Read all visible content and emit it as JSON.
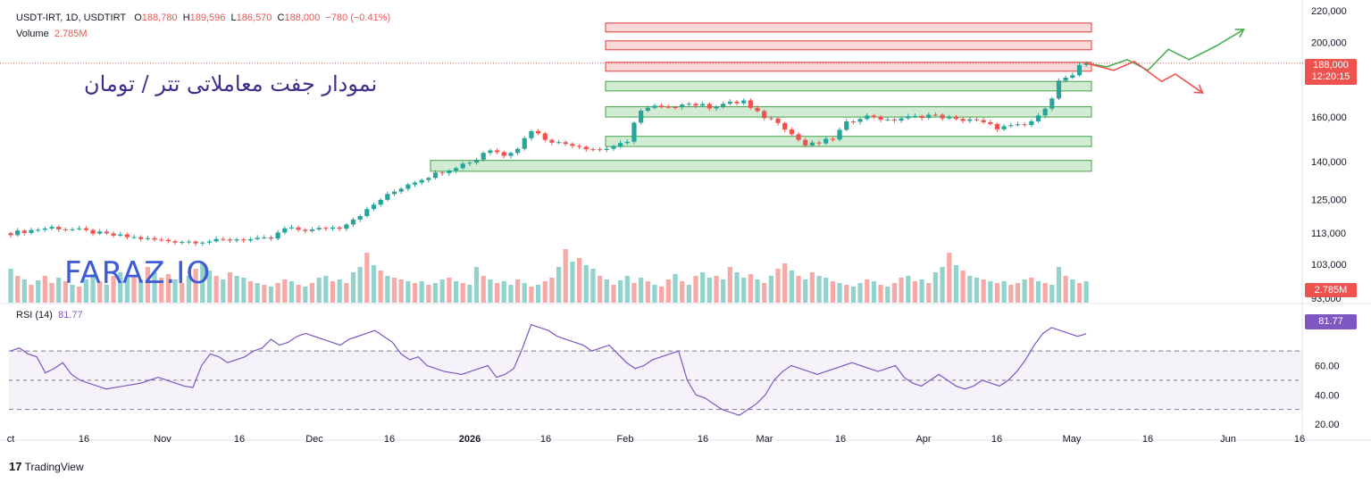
{
  "header": {
    "symbol": "USDT-IRT, 1D, USDTIRT",
    "open_label": "O",
    "open": "188,780",
    "high_label": "H",
    "high": "189,596",
    "low_label": "L",
    "low": "186,570",
    "close_label": "C",
    "close": "188,000",
    "change": "−780 (−0.41%)",
    "volume_label": "Volume",
    "volume": "2.785M"
  },
  "title_fa": "نمودار جفت معاملاتی تتر / تومان",
  "watermark": "FARAZ.IO",
  "rsi": {
    "label": "RSI (14)",
    "value": "81.77"
  },
  "badges": {
    "price": "188,000",
    "countdown": "12:20:15",
    "volume": "2.785M",
    "rsi": "81.77"
  },
  "footer": {
    "brand_icon": "17",
    "brand_text": "TradingView"
  },
  "colors": {
    "up": "#26a69a",
    "down": "#ef5350",
    "rsi_line": "#7e57c2",
    "accent": "#3f5bd6"
  },
  "chart_data": {
    "type": "candlestick",
    "price_axis": {
      "ticks": [
        93000,
        103000,
        113000,
        125000,
        140000,
        160000,
        188000,
        200000,
        220000
      ],
      "tick_labels": [
        "93,000",
        "103,000",
        "113,000",
        "125,000",
        "140,000",
        "160,000",
        "188,000",
        "200,000",
        "220,000"
      ],
      "scale": "log"
    },
    "time_axis": {
      "labels": [
        "ct",
        "16",
        "Nov",
        "16",
        "Dec",
        "16",
        "2026",
        "16",
        "Feb",
        "16",
        "Mar",
        "16",
        "Apr",
        "16",
        "May",
        "16",
        "Jun",
        "16"
      ]
    },
    "price_path": [
      [
        0,
        113000
      ],
      [
        6,
        115000
      ],
      [
        10,
        114000
      ],
      [
        14,
        112500
      ],
      [
        18,
        111500
      ],
      [
        22,
        110500
      ],
      [
        26,
        110200
      ],
      [
        30,
        110400
      ],
      [
        33,
        111000
      ],
      [
        36,
        110800
      ],
      [
        38,
        111200
      ],
      [
        40,
        114500
      ],
      [
        42,
        114200
      ],
      [
        44,
        114000
      ],
      [
        46,
        114800
      ],
      [
        48,
        115000
      ],
      [
        50,
        118000
      ],
      [
        52,
        121000
      ],
      [
        54,
        125000
      ],
      [
        56,
        128000
      ],
      [
        58,
        131000
      ],
      [
        60,
        133000
      ],
      [
        62,
        135000
      ],
      [
        64,
        137000
      ],
      [
        66,
        139000
      ],
      [
        68,
        141000
      ],
      [
        69,
        144000
      ],
      [
        70,
        145000
      ],
      [
        72,
        143000
      ],
      [
        74,
        146000
      ],
      [
        76,
        154000
      ],
      [
        78,
        150000
      ],
      [
        80,
        148000
      ],
      [
        82,
        147500
      ],
      [
        84,
        146000
      ],
      [
        86,
        145000
      ],
      [
        88,
        146500
      ],
      [
        90,
        148000
      ],
      [
        91,
        158000
      ],
      [
        92,
        163000
      ],
      [
        94,
        165000
      ],
      [
        96,
        164000
      ],
      [
        98,
        167000
      ],
      [
        100,
        166000
      ],
      [
        102,
        165000
      ],
      [
        104,
        166500
      ],
      [
        106,
        167000
      ],
      [
        107,
        168000
      ],
      [
        108,
        164000
      ],
      [
        110,
        160000
      ],
      [
        112,
        158000
      ],
      [
        114,
        152000
      ],
      [
        116,
        147000
      ],
      [
        118,
        148000
      ],
      [
        120,
        150000
      ],
      [
        122,
        157000
      ],
      [
        124,
        160000
      ],
      [
        126,
        160500
      ],
      [
        128,
        158000
      ],
      [
        130,
        159500
      ],
      [
        132,
        160000
      ],
      [
        134,
        161000
      ],
      [
        136,
        160000
      ],
      [
        138,
        158500
      ],
      [
        140,
        159000
      ],
      [
        142,
        157000
      ],
      [
        144,
        155000
      ],
      [
        146,
        155500
      ],
      [
        148,
        156000
      ],
      [
        150,
        160000
      ],
      [
        152,
        170000
      ],
      [
        153,
        178000
      ],
      [
        154,
        180000
      ],
      [
        155,
        180500
      ],
      [
        156,
        186000
      ],
      [
        157,
        188000
      ]
    ],
    "zones": [
      {
        "type": "resistance",
        "low": 207000,
        "high": 212000
      },
      {
        "type": "resistance",
        "low": 196000,
        "high": 201000
      },
      {
        "type": "resistance",
        "low": 184000,
        "high": 188500
      },
      {
        "type": "support",
        "low": 173000,
        "high": 178000
      },
      {
        "type": "support",
        "low": 160000,
        "high": 165000
      },
      {
        "type": "support",
        "low": 146500,
        "high": 151000
      },
      {
        "type": "support",
        "low": 136000,
        "high": 140500
      }
    ],
    "projections": [
      {
        "name": "bullish",
        "color": "#4caf50",
        "points": [
          [
            157,
            188000
          ],
          [
            160,
            186000
          ],
          [
            163,
            190000
          ],
          [
            166,
            184000
          ],
          [
            169,
            196000
          ],
          [
            172,
            190000
          ],
          [
            176,
            198000
          ],
          [
            180,
            208000
          ]
        ]
      },
      {
        "name": "bearish",
        "color": "#ef5350",
        "points": [
          [
            157,
            188000
          ],
          [
            161,
            184000
          ],
          [
            164,
            189000
          ],
          [
            168,
            178000
          ],
          [
            170,
            182000
          ],
          [
            174,
            172000
          ]
        ]
      }
    ],
    "volume_profile": [
      38,
      30,
      26,
      20,
      25,
      30,
      22,
      28,
      24,
      20,
      18,
      26,
      32,
      24,
      20,
      30,
      34,
      28,
      30,
      26,
      40,
      34,
      28,
      32,
      26,
      22,
      30,
      38,
      44,
      36,
      30,
      26,
      34,
      30,
      28,
      24,
      22,
      20,
      18,
      22,
      26,
      24,
      20,
      18,
      22,
      28,
      30,
      24,
      26,
      22,
      34,
      40,
      56,
      42,
      36,
      30,
      28,
      26,
      24,
      22,
      24,
      20,
      22,
      26,
      28,
      24,
      22,
      20,
      40,
      30,
      26,
      22,
      24,
      20,
      26,
      22,
      18,
      20,
      24,
      28,
      40,
      60,
      46,
      50,
      42
    ],
    "rsi_series": [
      70,
      72,
      68,
      66,
      55,
      58,
      62,
      54,
      50,
      48,
      46,
      44,
      45,
      46,
      47,
      48,
      50,
      52,
      50,
      48,
      46,
      45,
      60,
      68,
      66,
      62,
      64,
      66,
      70,
      72,
      78,
      74,
      76,
      80,
      82,
      80,
      78,
      76,
      74,
      78,
      80,
      82,
      84,
      80,
      76,
      68,
      64,
      66,
      60,
      58,
      56,
      55,
      54,
      56,
      58,
      60,
      52,
      54,
      58,
      72,
      88,
      86,
      84,
      80,
      78,
      76,
      74,
      70,
      72,
      74,
      68,
      62,
      58,
      60,
      64,
      66,
      68,
      70,
      50,
      40,
      38,
      34,
      30,
      28,
      26,
      30,
      34,
      40,
      50,
      56,
      60,
      58,
      56,
      54,
      56,
      58,
      60,
      62,
      60,
      58,
      56,
      58,
      60,
      52,
      48,
      46,
      50,
      54,
      50,
      46,
      44,
      46,
      50,
      48,
      46,
      50,
      56,
      64,
      74,
      82,
      86,
      84,
      82,
      80,
      81.77
    ],
    "rsi_levels": [
      30,
      50,
      70
    ],
    "rsi_axis": {
      "ticks": [
        20,
        40,
        60
      ],
      "tick_labels": [
        "20.00",
        "40.00",
        "60.00"
      ]
    }
  }
}
